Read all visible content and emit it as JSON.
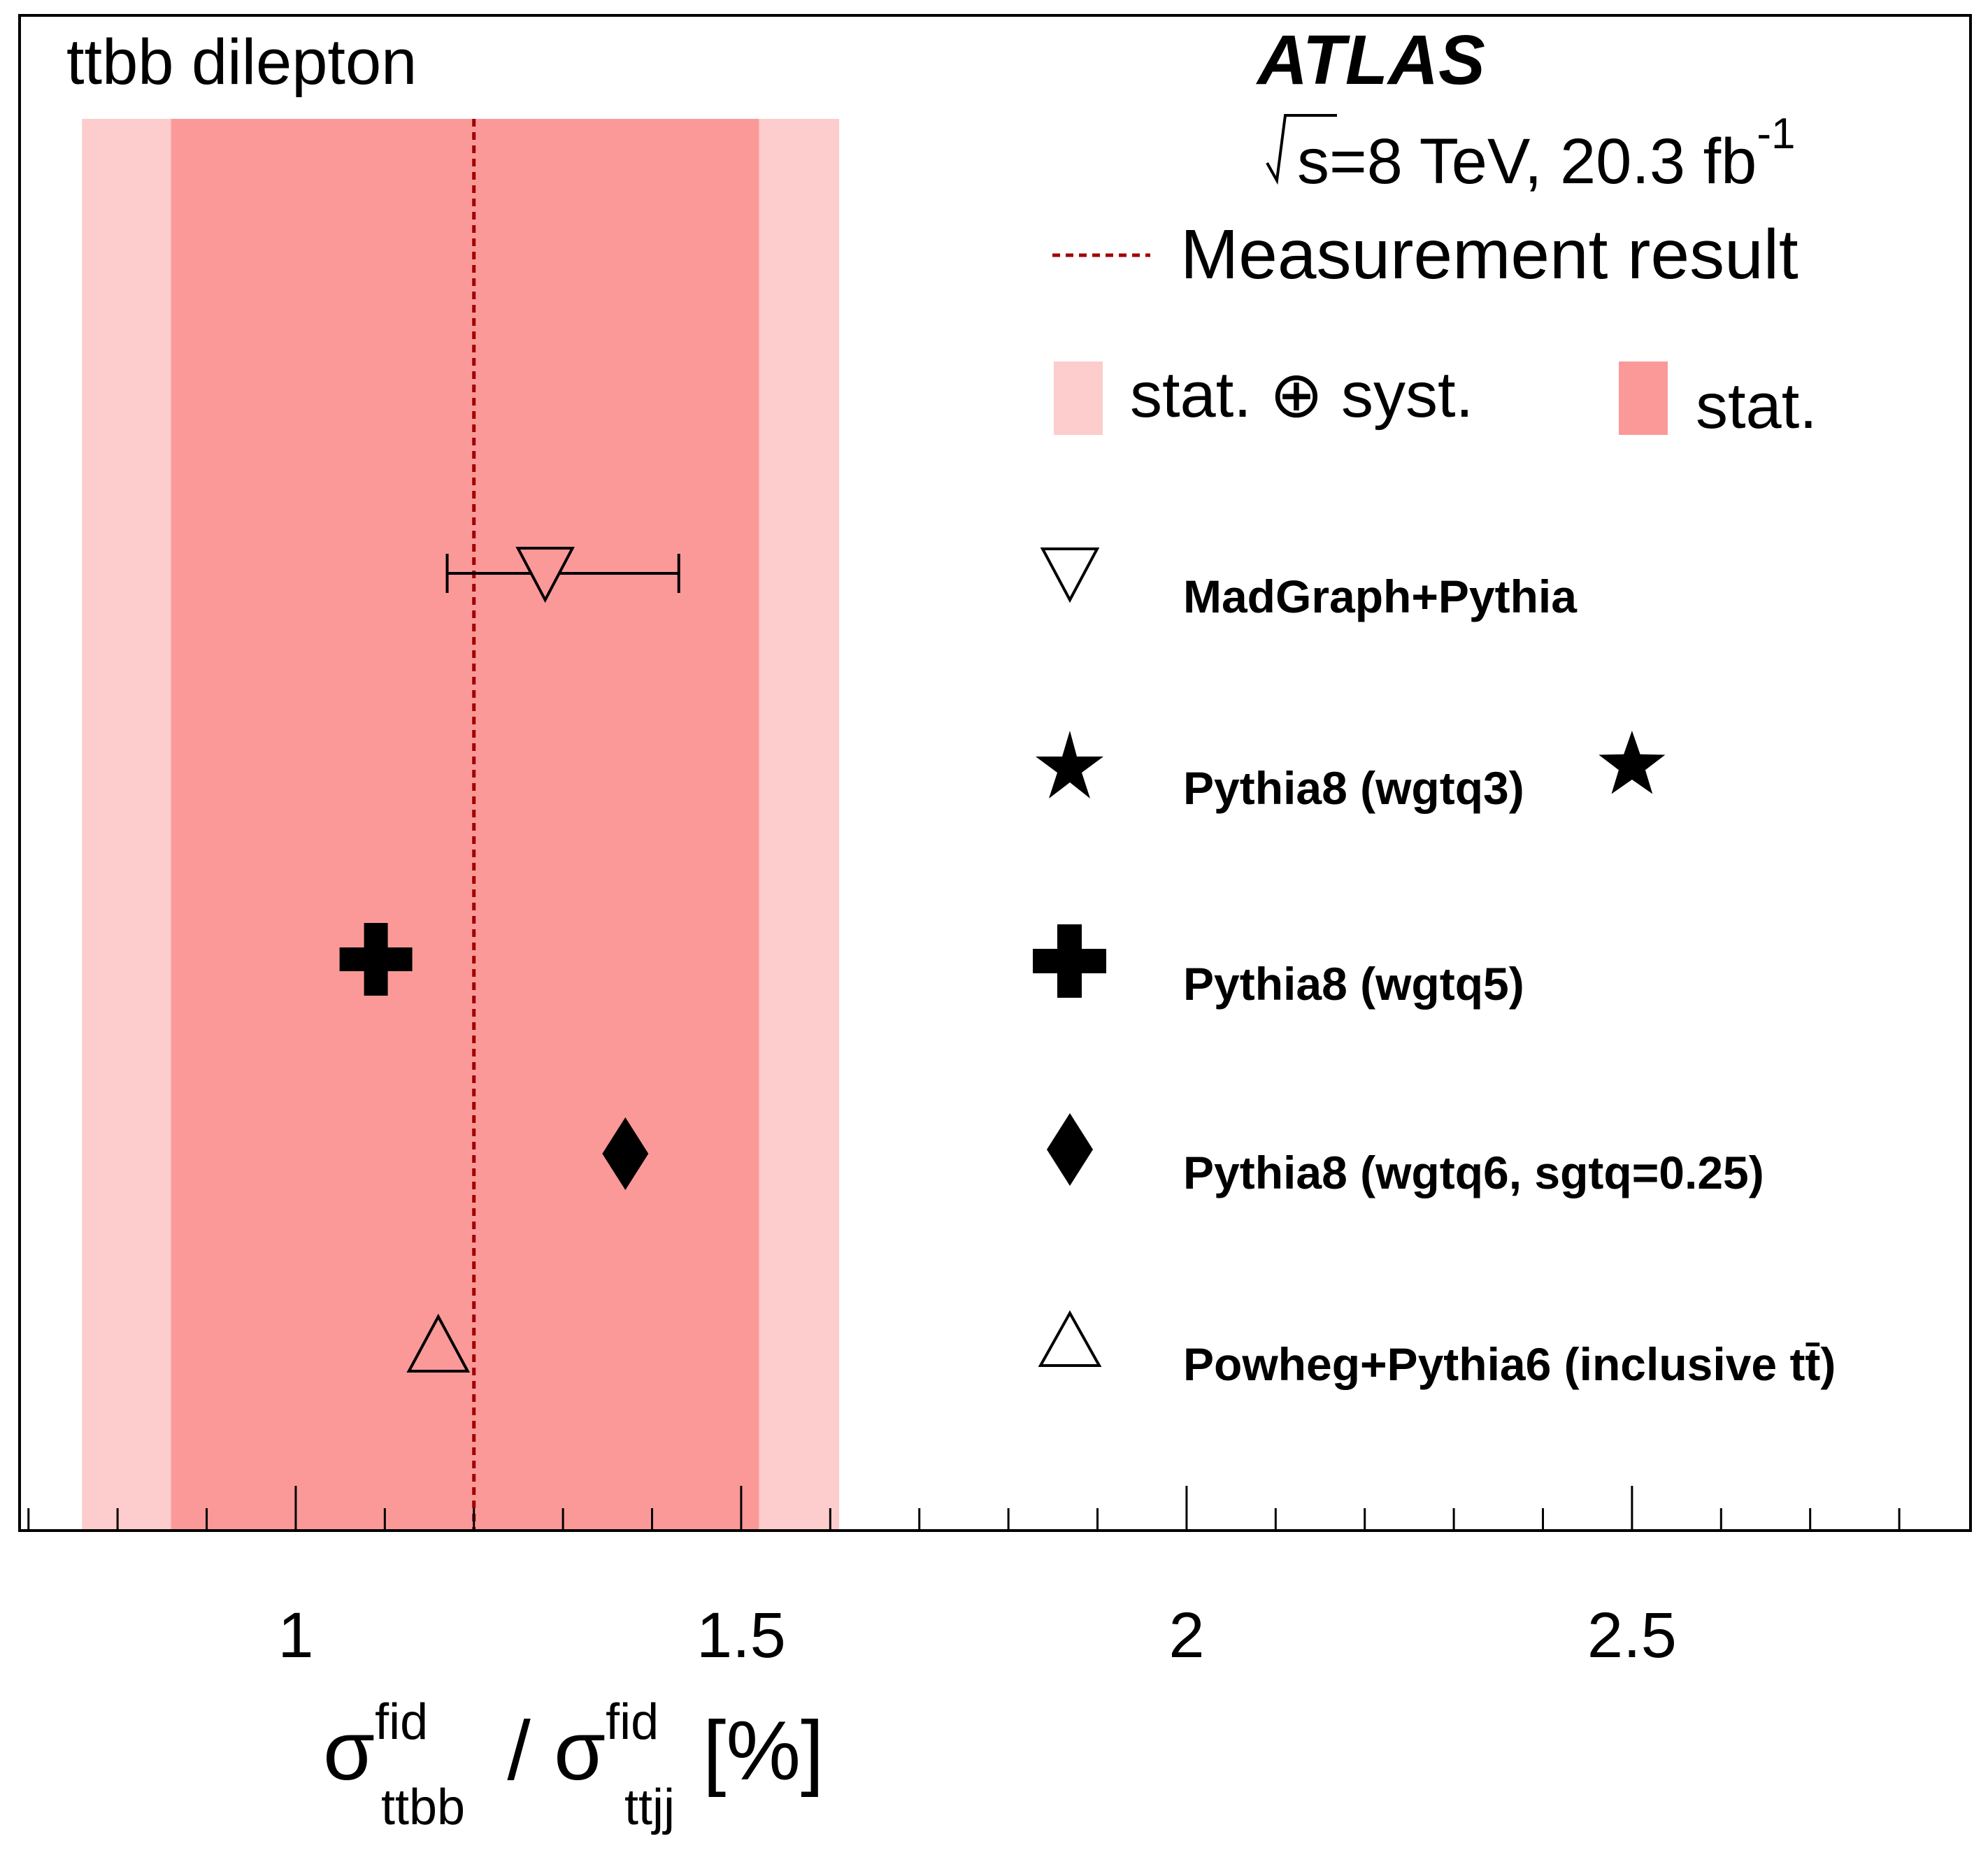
{
  "chart_data": {
    "type": "scatter",
    "title": "ttbb dilepton",
    "experiment": "ATLAS",
    "energy_label": {
      "prefix": "s=8 TeV, 20.3 fb",
      "superscript": "-1"
    },
    "xlabel": {
      "sigma": "σ",
      "num_sup": "fid",
      "num_sub": "ttbb",
      "divider": " / ",
      "den_sup": "fid",
      "den_sub": "ttjj",
      "unit": "[%]"
    },
    "xlim": [
      0.69,
      2.88
    ],
    "xticks": [
      1,
      1.5,
      2,
      2.5
    ],
    "xtick_labels": [
      "1",
      "1.5",
      "2",
      "2.5"
    ],
    "minor_tick_step": 0.1,
    "measurement": {
      "label": "Measurement result",
      "value": 1.2,
      "stat_band": [
        0.86,
        1.52
      ],
      "total_band": [
        0.76,
        1.61
      ],
      "color_line": "#a00000",
      "color_stat": "#fb9999",
      "color_total": "#fdcccc"
    },
    "band_legend": {
      "total": "stat. ⊕ syst.",
      "stat": "stat."
    },
    "series": [
      {
        "name": "MadGraph+Pythia",
        "marker": "triangle-down-open",
        "x": 1.28,
        "xerr": [
          1.17,
          1.43
        ]
      },
      {
        "name": "Pythia8 (wgtq3)",
        "marker": "star",
        "x": 2.5
      },
      {
        "name": "Pythia8 (wgtq5)",
        "marker": "cross",
        "x": 1.09
      },
      {
        "name": "Pythia8 (wgtq6, sgtq=0.25)",
        "marker": "diamond",
        "x": 1.37
      },
      {
        "name": "Powheg+Pythia6 (inclusive tt̄)",
        "marker": "triangle-up-open",
        "x": 1.16
      }
    ]
  }
}
